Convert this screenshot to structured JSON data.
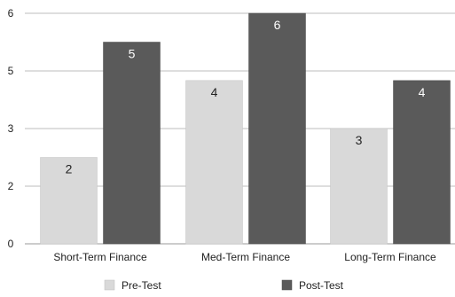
{
  "chart_data": {
    "type": "bar",
    "categories": [
      "Short-Term Finance",
      "Med-Term Finance",
      "Long-Term Finance"
    ],
    "series": [
      {
        "name": "Pre-Test",
        "values": [
          2.25,
          4.25,
          3.0
        ],
        "labels": [
          "2",
          "4",
          "3"
        ],
        "color": "#d9d9d9"
      },
      {
        "name": "Post-Test",
        "values": [
          5.25,
          6.0,
          4.25
        ],
        "labels": [
          "5",
          "6",
          "4"
        ],
        "color": "#5a5a5a"
      }
    ],
    "yticks": [
      0,
      1.5,
      3,
      4.5,
      6
    ],
    "ytick_labels": [
      "0",
      "2",
      "3",
      "5",
      "6"
    ],
    "ylim": [
      0,
      6
    ],
    "grid": true,
    "legend_position": "bottom-center",
    "title": "",
    "xlabel": "",
    "ylabel": ""
  }
}
